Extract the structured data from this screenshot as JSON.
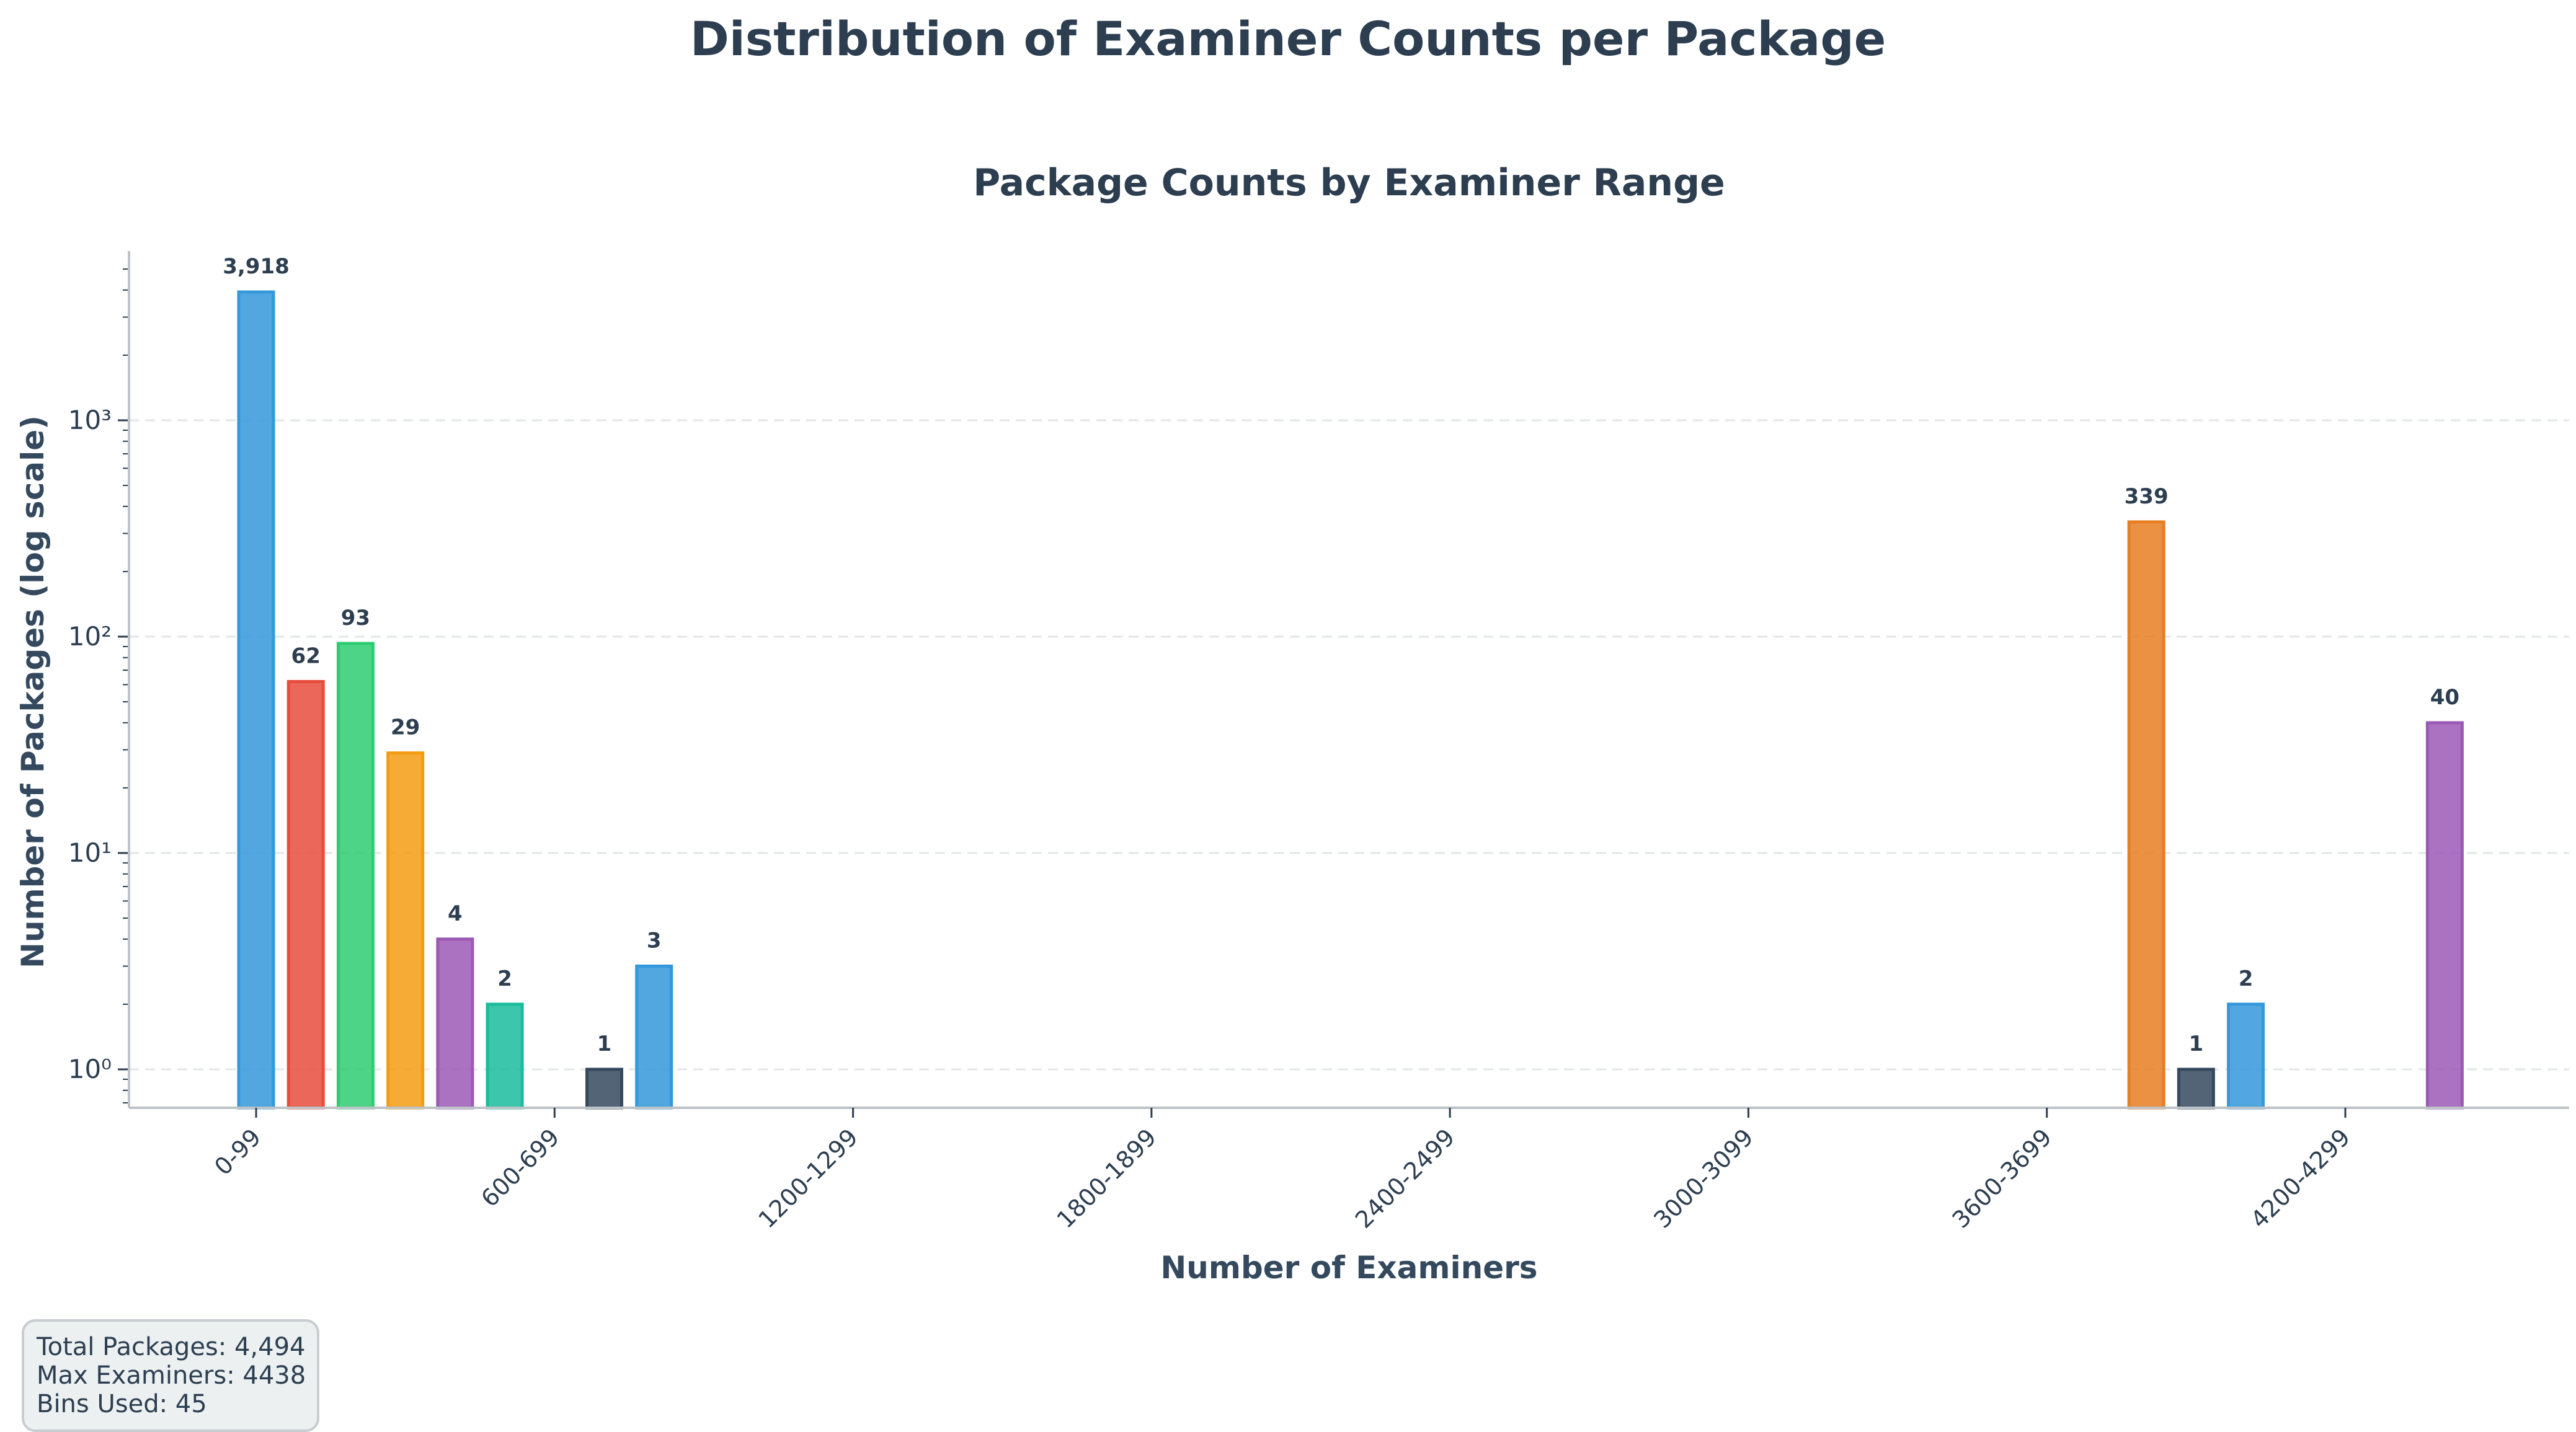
{
  "figure": {
    "suptitle": "Distribution of Examiner Counts per Package",
    "subtitle": "Package Counts by Examiner Range"
  },
  "info_box": {
    "lines": [
      "Total Packages: 4,494",
      "Max Examiners: 4438",
      "Bins Used: 45"
    ]
  },
  "chart_data": {
    "type": "bar",
    "title": "Package Counts by Examiner Range",
    "suptitle": "Distribution of Examiner Counts per Package",
    "xlabel": "Number of Examiners",
    "ylabel": "Number of Packages (log scale)",
    "yscale": "log",
    "ylim": [
      0.67,
      5800
    ],
    "yticks": [
      1,
      10,
      100,
      1000
    ],
    "ytick_labels": [
      "10⁰",
      "10¹",
      "10²",
      "10³"
    ],
    "xtick_labels": [
      "0-99",
      "600-699",
      "1200-1299",
      "1800-1899",
      "2400-2499",
      "3000-3099",
      "3600-3699",
      "4200-4299"
    ],
    "xtick_bins": [
      0,
      6,
      12,
      18,
      24,
      30,
      36,
      42
    ],
    "num_bins": 45,
    "grid": "y, dashed",
    "bars": [
      {
        "bin": 0,
        "range": "0-99",
        "value": 3918,
        "label": "3,918",
        "color": "#3498db"
      },
      {
        "bin": 1,
        "range": "100-199",
        "value": 62,
        "label": "62",
        "color": "#e74c3c"
      },
      {
        "bin": 2,
        "range": "200-299",
        "value": 93,
        "label": "93",
        "color": "#2ecc71"
      },
      {
        "bin": 3,
        "range": "300-399",
        "value": 29,
        "label": "29",
        "color": "#f39c12"
      },
      {
        "bin": 4,
        "range": "400-499",
        "value": 4,
        "label": "4",
        "color": "#9b59b6"
      },
      {
        "bin": 5,
        "range": "500-599",
        "value": 2,
        "label": "2",
        "color": "#1abc9c"
      },
      {
        "bin": 7,
        "range": "700-799",
        "value": 1,
        "label": "1",
        "color": "#34495e"
      },
      {
        "bin": 8,
        "range": "800-899",
        "value": 3,
        "label": "3",
        "color": "#3498db"
      },
      {
        "bin": 38,
        "range": "3800-3899",
        "value": 339,
        "label": "339",
        "color": "#e67e22"
      },
      {
        "bin": 39,
        "range": "3900-3999",
        "value": 1,
        "label": "1",
        "color": "#34495e"
      },
      {
        "bin": 40,
        "range": "4000-4099",
        "value": 2,
        "label": "2",
        "color": "#3498db"
      },
      {
        "bin": 44,
        "range": "4400-4499",
        "value": 40,
        "label": "40",
        "color": "#9b59b6"
      }
    ]
  }
}
